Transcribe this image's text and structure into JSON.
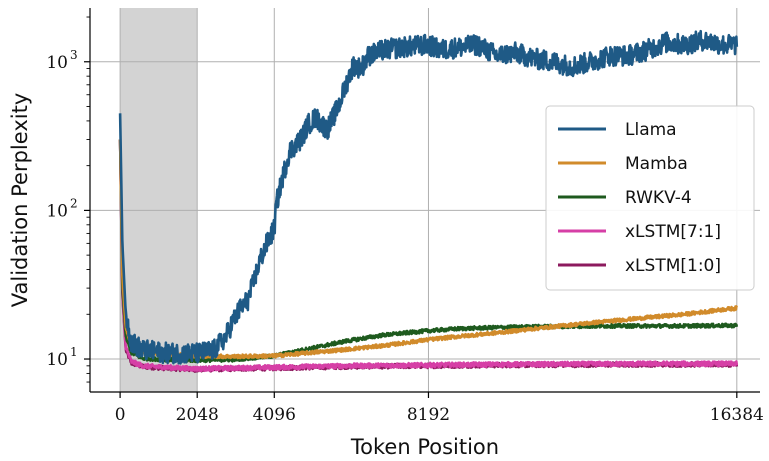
{
  "chart_data": {
    "type": "line",
    "xlabel": "Token Position",
    "ylabel": "Validation Perplexity",
    "yscale": "log",
    "xlim": [
      -800,
      17000
    ],
    "ylim": [
      6,
      2300
    ],
    "x_ticks": [
      0,
      2048,
      4096,
      8192,
      16384
    ],
    "x_tick_labels": [
      "0",
      "2048",
      "4096",
      "8192",
      "16384"
    ],
    "y_ticks": [
      10,
      100,
      1000
    ],
    "y_tick_label_base": "10",
    "y_tick_label_exps": [
      "1",
      "2",
      "3"
    ],
    "grid": true,
    "shaded_region": [
      0,
      2048
    ],
    "shaded_color": "#d3d3d3",
    "legend_position": "center right",
    "series": [
      {
        "name": "Llama",
        "color": "#1f5a86",
        "noise": 0.07,
        "points": [
          [
            0,
            450
          ],
          [
            60,
            60
          ],
          [
            150,
            20
          ],
          [
            300,
            13
          ],
          [
            600,
            11.5
          ],
          [
            1200,
            11
          ],
          [
            2048,
            10.9
          ],
          [
            2500,
            11.5
          ],
          [
            2800,
            14
          ],
          [
            3000,
            18
          ],
          [
            3200,
            22
          ],
          [
            3400,
            25
          ],
          [
            3500,
            30
          ],
          [
            3700,
            45
          ],
          [
            3900,
            60
          ],
          [
            4096,
            75
          ],
          [
            4150,
            110
          ],
          [
            4300,
            160
          ],
          [
            4500,
            250
          ],
          [
            4800,
            300
          ],
          [
            5000,
            380
          ],
          [
            5200,
            420
          ],
          [
            5500,
            350
          ],
          [
            5800,
            500
          ],
          [
            6000,
            700
          ],
          [
            6200,
            950
          ],
          [
            6400,
            900
          ],
          [
            6600,
            1100
          ],
          [
            7000,
            1200
          ],
          [
            7500,
            1250
          ],
          [
            8192,
            1300
          ],
          [
            8500,
            1200
          ],
          [
            9000,
            1250
          ],
          [
            9500,
            1300
          ],
          [
            10000,
            1100
          ],
          [
            10500,
            1150
          ],
          [
            11000,
            1050
          ],
          [
            11500,
            1000
          ],
          [
            12000,
            930
          ],
          [
            12500,
            1000
          ],
          [
            13000,
            1100
          ],
          [
            13500,
            1100
          ],
          [
            14000,
            1200
          ],
          [
            14500,
            1350
          ],
          [
            15000,
            1300
          ],
          [
            15500,
            1400
          ],
          [
            16000,
            1300
          ],
          [
            16384,
            1300
          ]
        ]
      },
      {
        "name": "Mamba",
        "color": "#d18b2b",
        "noise": 0.012,
        "points": [
          [
            0,
            300
          ],
          [
            60,
            35
          ],
          [
            150,
            16
          ],
          [
            300,
            12.5
          ],
          [
            600,
            11.2
          ],
          [
            1200,
            10.8
          ],
          [
            2048,
            10.5
          ],
          [
            3000,
            10.4
          ],
          [
            4096,
            10.5
          ],
          [
            5000,
            11
          ],
          [
            6000,
            11.6
          ],
          [
            7000,
            12.3
          ],
          [
            8192,
            13.5
          ],
          [
            9000,
            14.2
          ],
          [
            10000,
            15
          ],
          [
            11000,
            16
          ],
          [
            12000,
            17
          ],
          [
            13000,
            18
          ],
          [
            14000,
            19
          ],
          [
            15000,
            20
          ],
          [
            16000,
            21.5
          ],
          [
            16384,
            22
          ]
        ]
      },
      {
        "name": "RWKV-4",
        "color": "#1e5a1e",
        "noise": 0.012,
        "points": [
          [
            0,
            300
          ],
          [
            60,
            30
          ],
          [
            150,
            14
          ],
          [
            300,
            11
          ],
          [
            600,
            10.1
          ],
          [
            1200,
            9.9
          ],
          [
            2048,
            9.8
          ],
          [
            3000,
            9.9
          ],
          [
            4096,
            10.5
          ],
          [
            5000,
            11.7
          ],
          [
            6000,
            13.2
          ],
          [
            7000,
            14.5
          ],
          [
            8192,
            15.5
          ],
          [
            9000,
            16
          ],
          [
            10000,
            16.3
          ],
          [
            11000,
            16.5
          ],
          [
            12000,
            16.6
          ],
          [
            13000,
            16.7
          ],
          [
            14000,
            16.7
          ],
          [
            15000,
            16.7
          ],
          [
            16000,
            16.8
          ],
          [
            16384,
            16.8
          ]
        ]
      },
      {
        "name": "xLSTM[7:1]",
        "color": "#d63fa6",
        "noise": 0.015,
        "points": [
          [
            0,
            300
          ],
          [
            60,
            28
          ],
          [
            150,
            12
          ],
          [
            300,
            9.6
          ],
          [
            600,
            9.0
          ],
          [
            1200,
            8.8
          ],
          [
            2048,
            8.6
          ],
          [
            3000,
            8.7
          ],
          [
            4096,
            8.8
          ],
          [
            6000,
            9.0
          ],
          [
            8192,
            9.1
          ],
          [
            10000,
            9.2
          ],
          [
            12000,
            9.25
          ],
          [
            14000,
            9.3
          ],
          [
            16384,
            9.3
          ]
        ]
      },
      {
        "name": "xLSTM[1:0]",
        "color": "#8c1a5e",
        "noise": 0.015,
        "points": [
          [
            0,
            300
          ],
          [
            60,
            27
          ],
          [
            150,
            11.5
          ],
          [
            300,
            9.4
          ],
          [
            600,
            8.9
          ],
          [
            1200,
            8.7
          ],
          [
            2048,
            8.5
          ],
          [
            3000,
            8.6
          ],
          [
            4096,
            8.7
          ],
          [
            6000,
            8.9
          ],
          [
            8192,
            9.0
          ],
          [
            10000,
            9.1
          ],
          [
            12000,
            9.15
          ],
          [
            14000,
            9.2
          ],
          [
            16384,
            9.2
          ]
        ]
      }
    ]
  }
}
